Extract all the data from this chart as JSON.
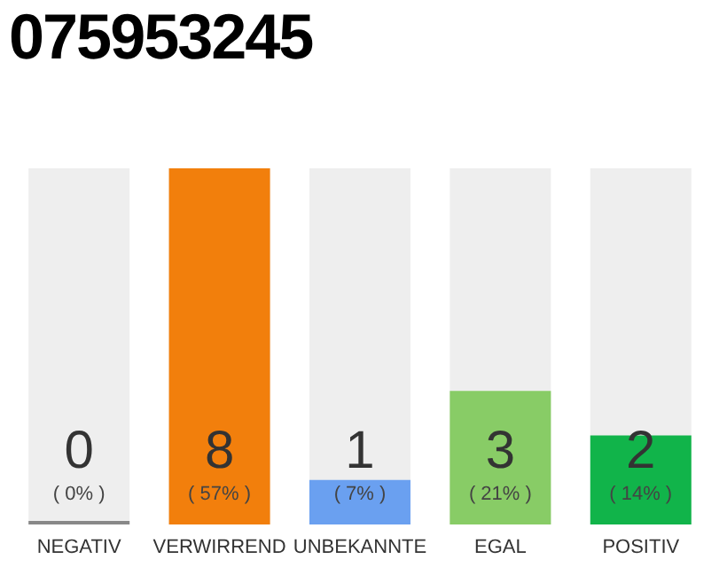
{
  "chart_data": {
    "type": "bar",
    "title": "075953245",
    "categories": [
      "NEGATIV",
      "VERWIRREND",
      "UNBEKANNTE",
      "EGAL",
      "POSITIV"
    ],
    "values": [
      0,
      8,
      1,
      3,
      2
    ],
    "colors": [
      "#888888",
      "#f27f0c",
      "#6aa0f0",
      "#88cc66",
      "#11b44a"
    ],
    "tick_labels": "x",
    "data_labels": true,
    "annotations": [
      "( 0% )",
      "( 57% )",
      "( 7% )",
      "( 21% )",
      "( 14% )"
    ]
  }
}
